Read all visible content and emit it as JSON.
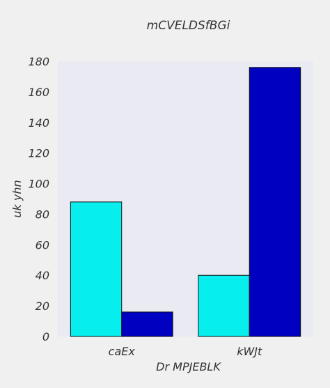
{
  "chart_data": {
    "type": "bar",
    "title": "mCVELDSfBGi",
    "xlabel": "Dr MPJEBLK",
    "ylabel": "uk yhn",
    "categories": [
      "caEx",
      "kWJt"
    ],
    "series": [
      {
        "values": [
          88,
          40
        ],
        "color": "#07eeee"
      },
      {
        "values": [
          16,
          176
        ],
        "color": "#0000c0"
      }
    ],
    "ylim": [
      0,
      180
    ],
    "yticks": [
      0,
      20,
      40,
      60,
      80,
      100,
      120,
      140,
      160,
      180
    ],
    "grid": false,
    "legend": "none",
    "plot_background": "#eaeaf2",
    "page_background": "#f0f0f0"
  }
}
